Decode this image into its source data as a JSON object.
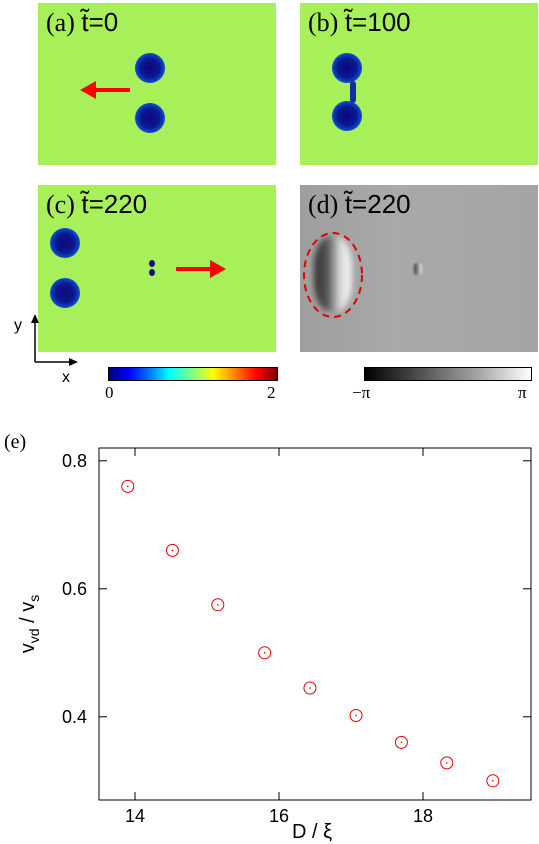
{
  "panels": {
    "a": {
      "label_prefix": "(a) ",
      "label_t": "t̃=0"
    },
    "b": {
      "label_prefix": "(b) ",
      "label_t": "t̃=100"
    },
    "c": {
      "label_prefix": "(c) ",
      "label_t": "t̃=220"
    },
    "d": {
      "label_prefix": "(d) ",
      "label_t": "t̃=220"
    }
  },
  "axes_glyph": {
    "y": "y",
    "x": "x"
  },
  "colorbar_density": {
    "min_label": "0",
    "max_label": "2"
  },
  "colorbar_phase": {
    "min_label": "−π",
    "max_label": "π"
  },
  "colors": {
    "arrow": "#ff0000",
    "background_field": "#a8f05a",
    "marker": "#e00000"
  },
  "chart_data": {
    "type": "scatter",
    "panel_label": "(e)",
    "xlabel": "D / ξ",
    "ylabel": "v",
    "ylabel_sub1": "vd",
    "ylabel_mid": " / v",
    "ylabel_sub2": "s",
    "xlim": [
      13.5,
      19.5
    ],
    "ylim": [
      0.27,
      0.82
    ],
    "xticks": [
      14,
      16,
      18
    ],
    "yticks": [
      0.4,
      0.6,
      0.8
    ],
    "xtick_labels": [
      "14",
      "16",
      "18"
    ],
    "ytick_labels": [
      "0.4",
      "0.6",
      "0.8"
    ],
    "points": [
      {
        "x": 13.9,
        "y": 0.76
      },
      {
        "x": 14.52,
        "y": 0.66
      },
      {
        "x": 15.15,
        "y": 0.575
      },
      {
        "x": 15.8,
        "y": 0.5
      },
      {
        "x": 16.43,
        "y": 0.445
      },
      {
        "x": 17.07,
        "y": 0.402
      },
      {
        "x": 17.7,
        "y": 0.36
      },
      {
        "x": 18.33,
        "y": 0.328
      },
      {
        "x": 18.97,
        "y": 0.3
      }
    ]
  }
}
